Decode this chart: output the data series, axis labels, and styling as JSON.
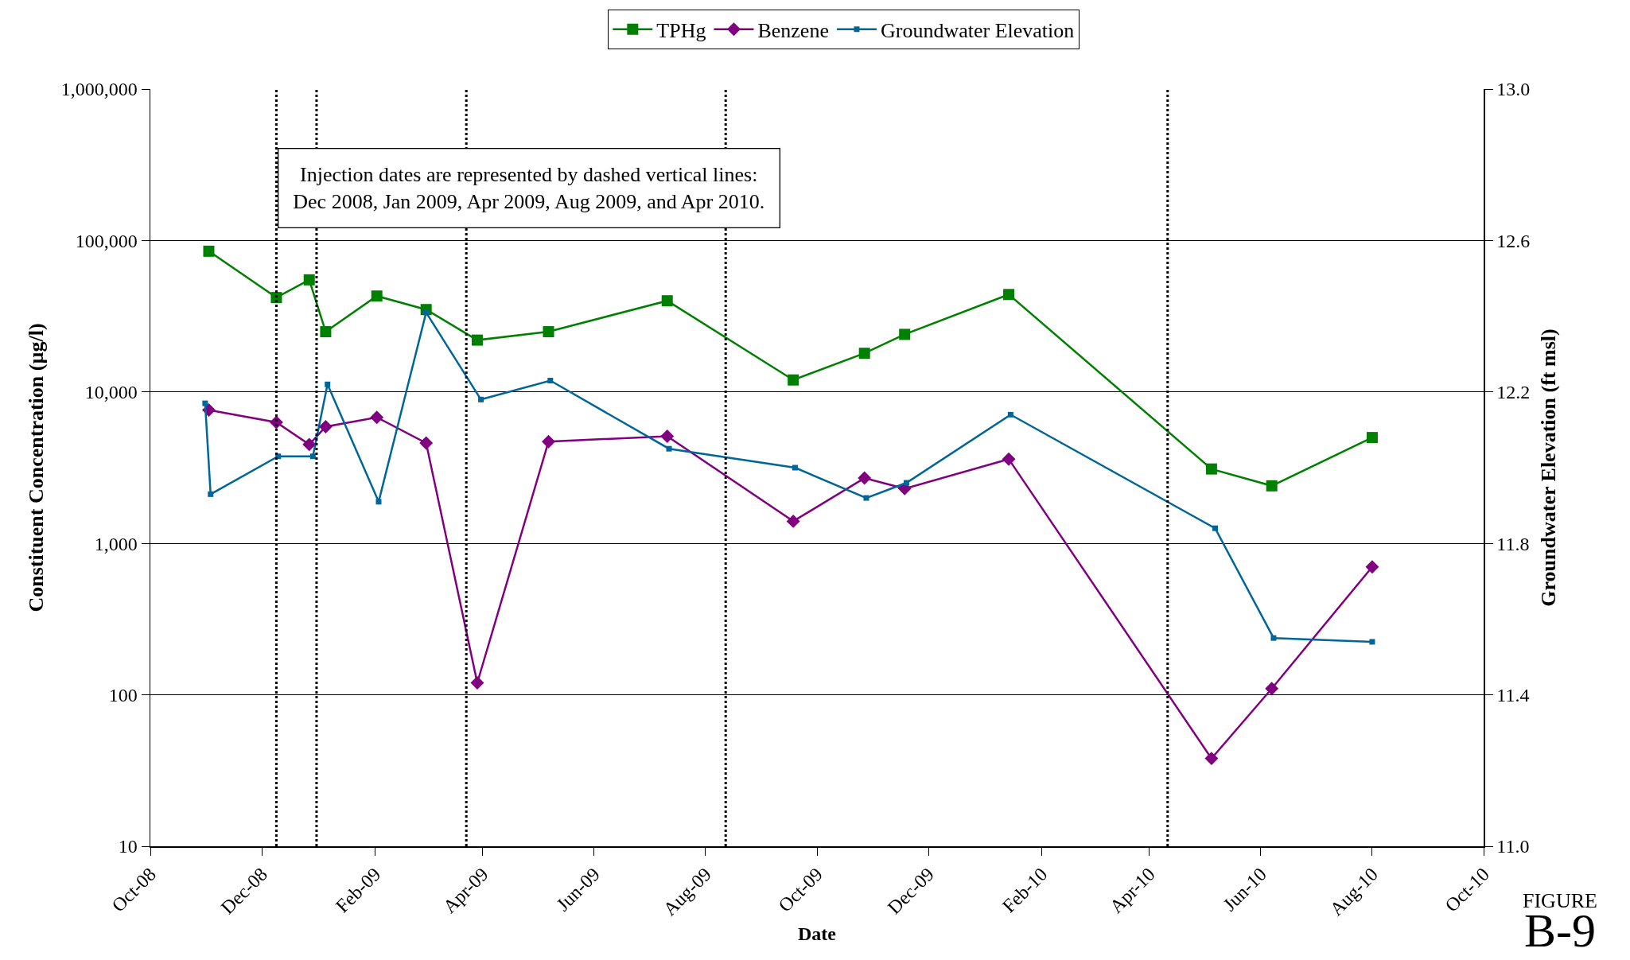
{
  "chart_data": {
    "type": "line",
    "xlabel": "Date",
    "ylabel": "Constituent Concentration (µg/l)",
    "y2label": "Groundwater Elevation (ft msl)",
    "annotations": [
      "Injection dates are represented by dashed vertical lines:\nDec 2008, Jan 2009, Apr 2009, Aug 2009, and Apr 2010.",
      "FIGURE",
      "B-9"
    ],
    "series": [
      {
        "name": "TPHg",
        "color": "#008000",
        "marker": "square",
        "x": [
          "2008-11-02",
          "2008-12-09",
          "2008-12-27",
          "2009-01-05",
          "2009-02-02",
          "2009-03-01",
          "2009-03-29",
          "2009-05-07",
          "2009-07-11",
          "2009-09-18",
          "2009-10-27",
          "2009-11-18",
          "2010-01-14",
          "2010-05-05",
          "2010-06-07",
          "2010-08-01"
        ],
        "values": [
          85000,
          42000,
          55000,
          25000,
          43000,
          35000,
          22000,
          25000,
          40000,
          12000,
          18000,
          24000,
          44000,
          3100,
          2400,
          5000
        ]
      },
      {
        "name": "Benzene",
        "color": "#800080",
        "marker": "diamond",
        "x": [
          "2008-11-02",
          "2008-12-09",
          "2008-12-27",
          "2009-01-05",
          "2009-02-02",
          "2009-03-01",
          "2009-03-29",
          "2009-05-07",
          "2009-07-11",
          "2009-09-18",
          "2009-10-27",
          "2009-11-18",
          "2010-01-14",
          "2010-05-05",
          "2010-06-07",
          "2010-08-01"
        ],
        "values": [
          7600,
          6300,
          4500,
          5900,
          6800,
          4600,
          120,
          4700,
          5100,
          1400,
          2700,
          2300,
          3600,
          38,
          110,
          700
        ]
      },
      {
        "name": "Groundwater Elevation",
        "color": "#006699",
        "marker": "square",
        "axis": "y2",
        "x": [
          "2008-10-31",
          "2008-11-03",
          "2008-12-10",
          "2008-12-29",
          "2009-01-06",
          "2009-02-03",
          "2009-03-01",
          "2009-03-31",
          "2009-05-08",
          "2009-07-12",
          "2009-09-19",
          "2009-10-28",
          "2009-11-19",
          "2010-01-15",
          "2010-05-07",
          "2010-06-08",
          "2010-08-01"
        ],
        "values": [
          12.17,
          11.93,
          12.03,
          12.03,
          12.22,
          11.91,
          12.41,
          12.18,
          12.23,
          12.05,
          12.0,
          11.92,
          11.96,
          12.14,
          11.84,
          11.55,
          11.54
        ]
      }
    ],
    "xlim": [
      "2008-10-01",
      "2010-10-01"
    ],
    "xticks": [
      {
        "value": "2008-10-01",
        "label": "Oct-08"
      },
      {
        "value": "2008-12-01",
        "label": "Dec-08"
      },
      {
        "value": "2009-02-01",
        "label": "Feb-09"
      },
      {
        "value": "2009-04-01",
        "label": "Apr-09"
      },
      {
        "value": "2009-06-01",
        "label": "Jun-09"
      },
      {
        "value": "2009-08-01",
        "label": "Aug-09"
      },
      {
        "value": "2009-10-01",
        "label": "Oct-09"
      },
      {
        "value": "2009-12-01",
        "label": "Dec-09"
      },
      {
        "value": "2010-02-01",
        "label": "Feb-10"
      },
      {
        "value": "2010-04-01",
        "label": "Apr-10"
      },
      {
        "value": "2010-06-01",
        "label": "Jun-10"
      },
      {
        "value": "2010-08-01",
        "label": "Aug-10"
      },
      {
        "value": "2010-10-01",
        "label": "Oct-10"
      }
    ],
    "ylim": [
      10,
      1000000
    ],
    "yticks": [
      10,
      100,
      {
        "value": 1000,
        "label": "1,000"
      },
      {
        "value": 10000,
        "label": "10,000"
      },
      {
        "value": 100000,
        "label": "100,000"
      },
      {
        "value": 1000000,
        "label": "1,000,000"
      }
    ],
    "log": true,
    "y2lim": [
      11,
      13
    ],
    "y2ticks": [
      {
        "value": 11,
        "label": "11.0"
      },
      11.4,
      11.8,
      12.2,
      12.6,
      {
        "value": 13,
        "label": "13.0"
      }
    ],
    "ref_lines": [
      {
        "axis": "x",
        "value": "2008-12-09",
        "color": "#000000",
        "line_style": "dotted"
      },
      {
        "axis": "x",
        "value": "2008-12-31",
        "color": "#000000",
        "line_style": "dotted"
      },
      {
        "axis": "x",
        "value": "2009-03-23",
        "color": "#000000",
        "line_style": "dotted"
      },
      {
        "axis": "x",
        "value": "2009-08-12",
        "color": "#000000",
        "line_style": "dotted"
      },
      {
        "axis": "x",
        "value": "2010-04-11",
        "color": "#000000",
        "line_style": "dotted"
      }
    ],
    "grid": "y",
    "legend": "top",
    "line_style": "solid"
  }
}
